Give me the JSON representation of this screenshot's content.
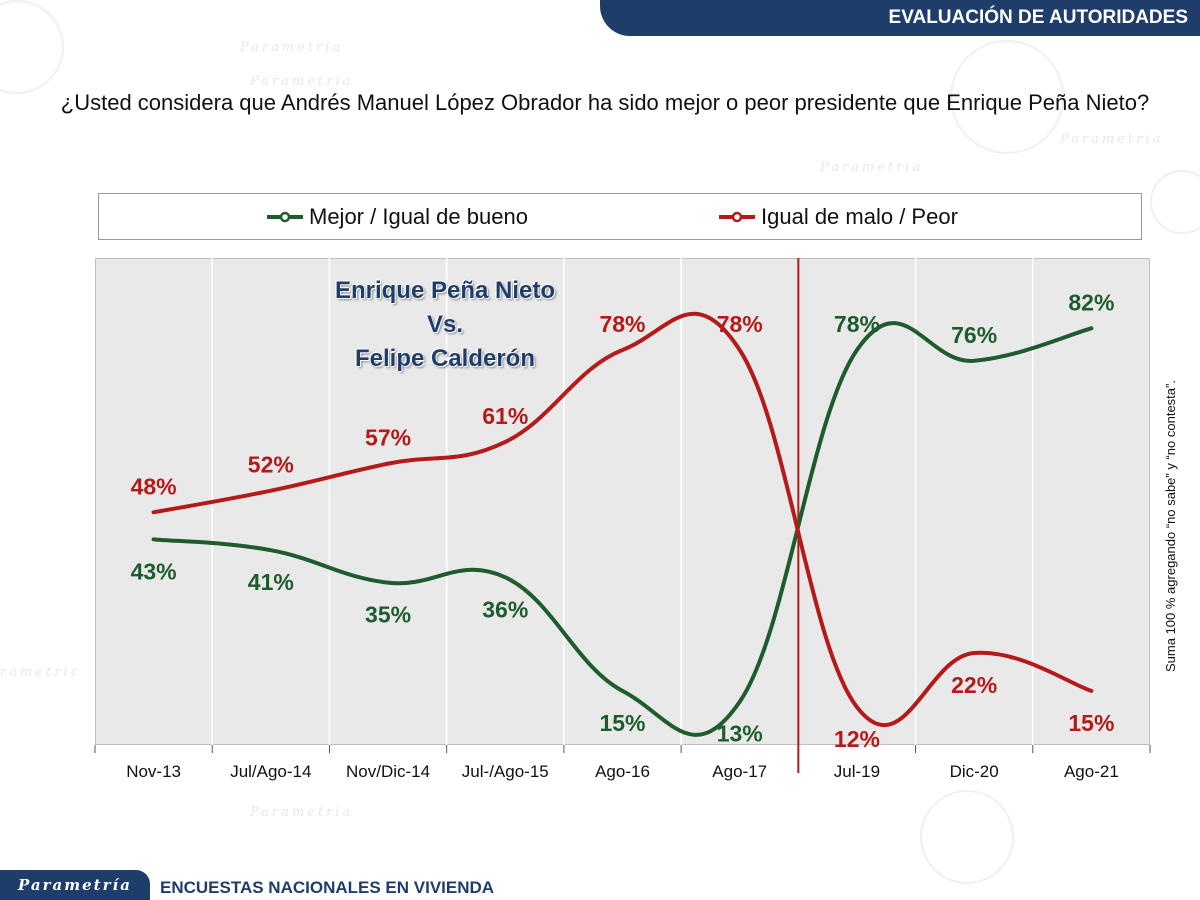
{
  "header": {
    "banner": "EVALUACIÓN DE AUTORIDADES"
  },
  "question": "¿Usted considera que Andrés Manuel López Obrador ha sido mejor o peor presidente que Enrique Peña Nieto?",
  "overlay": {
    "line1": "Enrique Peña Nieto",
    "line2": "Vs.",
    "line3": "Felipe Calderón"
  },
  "side_note": "Suma 100 % agregando “no sabe” y “no contesta”.",
  "footer": {
    "logo": "Parametría",
    "text": "ENCUESTAS NACIONALES EN VIVIENDA"
  },
  "chart_data": {
    "type": "line",
    "title": "",
    "xlabel": "",
    "ylabel": "",
    "categories": [
      "Nov-13",
      "Jul/Ago-14",
      "Nov/Dic-14",
      "Jul-/Ago-15",
      "Ago-16",
      "Ago-17",
      "Jul-19",
      "Dic-20",
      "Ago-21"
    ],
    "series": [
      {
        "name": "Mejor / Igual de bueno",
        "color": "#1e5c2e",
        "values": [
          43,
          41,
          35,
          36,
          15,
          13,
          78,
          76,
          82
        ],
        "labels": [
          "43%",
          "41%",
          "35%",
          "36%",
          "15%",
          "13%",
          "78%",
          "76%",
          "82%"
        ]
      },
      {
        "name": "Igual de malo / Peor",
        "color": "#b51a1a",
        "values": [
          48,
          52,
          57,
          61,
          78,
          78,
          12,
          22,
          15
        ],
        "labels": [
          "48%",
          "52%",
          "57%",
          "61%",
          "78%",
          "78%",
          "12%",
          "22%",
          "15%"
        ]
      }
    ],
    "divider_color": "#b51a1a",
    "grid": true,
    "legend": "top"
  }
}
